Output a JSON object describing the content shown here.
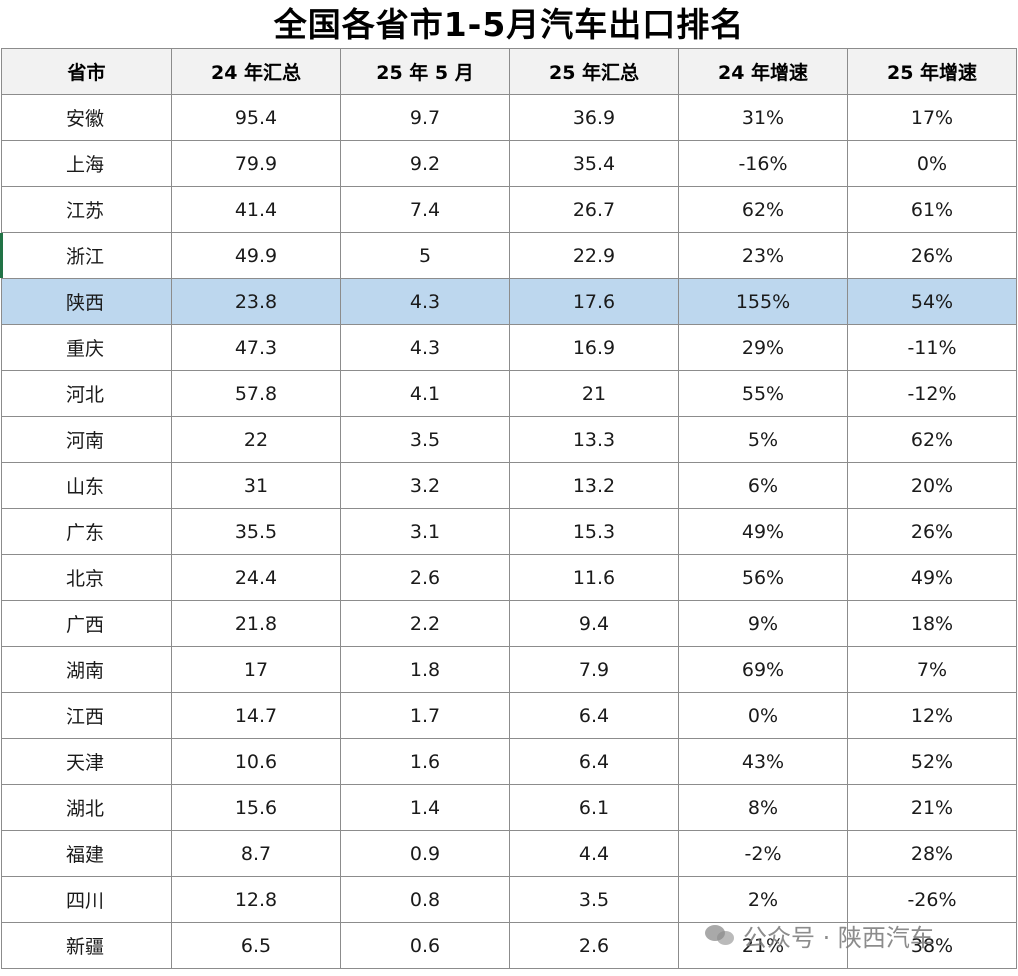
{
  "title": "全国各省市1-5月汽车出口排名",
  "headers": [
    "省市",
    "24 年汇总",
    "25 年 5 月",
    "25 年汇总",
    "24 年增速",
    "25 年增速"
  ],
  "rows": [
    {
      "province": "安徽",
      "total_24": "95.4",
      "may_25": "9.7",
      "total_25": "36.9",
      "growth_24": "31%",
      "growth_25": "17%"
    },
    {
      "province": "上海",
      "total_24": "79.9",
      "may_25": "9.2",
      "total_25": "35.4",
      "growth_24": "-16%",
      "growth_25": "0%"
    },
    {
      "province": "江苏",
      "total_24": "41.4",
      "may_25": "7.4",
      "total_25": "26.7",
      "growth_24": "62%",
      "growth_25": "61%"
    },
    {
      "province": "浙江",
      "total_24": "49.9",
      "may_25": "5",
      "total_25": "22.9",
      "growth_24": "23%",
      "growth_25": "26%"
    },
    {
      "province": "陕西",
      "total_24": "23.8",
      "may_25": "4.3",
      "total_25": "17.6",
      "growth_24": "155%",
      "growth_25": "54%",
      "highlight": true
    },
    {
      "province": "重庆",
      "total_24": "47.3",
      "may_25": "4.3",
      "total_25": "16.9",
      "growth_24": "29%",
      "growth_25": "-11%"
    },
    {
      "province": "河北",
      "total_24": "57.8",
      "may_25": "4.1",
      "total_25": "21",
      "growth_24": "55%",
      "growth_25": "-12%"
    },
    {
      "province": "河南",
      "total_24": "22",
      "may_25": "3.5",
      "total_25": "13.3",
      "growth_24": "5%",
      "growth_25": "62%"
    },
    {
      "province": "山东",
      "total_24": "31",
      "may_25": "3.2",
      "total_25": "13.2",
      "growth_24": "6%",
      "growth_25": "20%"
    },
    {
      "province": "广东",
      "total_24": "35.5",
      "may_25": "3.1",
      "total_25": "15.3",
      "growth_24": "49%",
      "growth_25": "26%"
    },
    {
      "province": "北京",
      "total_24": "24.4",
      "may_25": "2.6",
      "total_25": "11.6",
      "growth_24": "56%",
      "growth_25": "49%"
    },
    {
      "province": "广西",
      "total_24": "21.8",
      "may_25": "2.2",
      "total_25": "9.4",
      "growth_24": "9%",
      "growth_25": "18%"
    },
    {
      "province": "湖南",
      "total_24": "17",
      "may_25": "1.8",
      "total_25": "7.9",
      "growth_24": "69%",
      "growth_25": "7%"
    },
    {
      "province": "江西",
      "total_24": "14.7",
      "may_25": "1.7",
      "total_25": "6.4",
      "growth_24": "0%",
      "growth_25": "12%"
    },
    {
      "province": "天津",
      "total_24": "10.6",
      "may_25": "1.6",
      "total_25": "6.4",
      "growth_24": "43%",
      "growth_25": "52%"
    },
    {
      "province": "湖北",
      "total_24": "15.6",
      "may_25": "1.4",
      "total_25": "6.1",
      "growth_24": "8%",
      "growth_25": "21%"
    },
    {
      "province": "福建",
      "total_24": "8.7",
      "may_25": "0.9",
      "total_25": "4.4",
      "growth_24": "-2%",
      "growth_25": "28%"
    },
    {
      "province": "四川",
      "total_24": "12.8",
      "may_25": "0.8",
      "total_25": "3.5",
      "growth_24": "2%",
      "growth_25": "-26%"
    },
    {
      "province": "新疆",
      "total_24": "6.5",
      "may_25": "0.6",
      "total_25": "2.6",
      "growth_24": "21%",
      "growth_25": "38%"
    }
  ],
  "watermark": "公众号 · 陕西汽车",
  "colors": {
    "highlight_row": "#bdd7ee",
    "header_bg": "#f2f2f2",
    "grid_line": "#8c8c8c",
    "selection_mark": "#217346"
  },
  "icons": {
    "watermark_icon": "wechat-icon"
  }
}
